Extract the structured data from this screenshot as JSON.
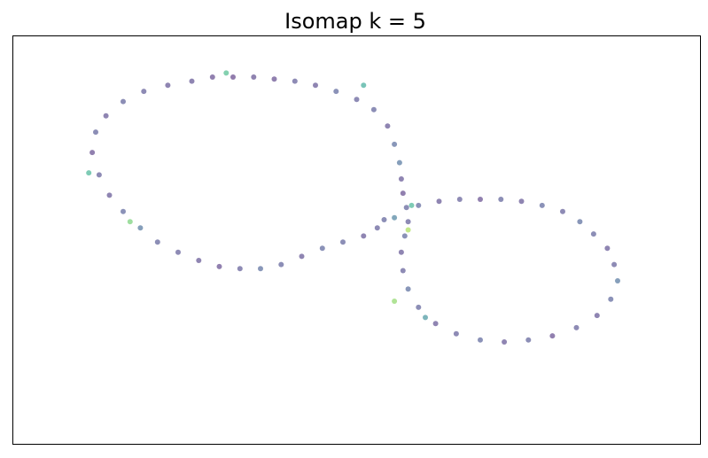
{
  "chart_data": {
    "type": "scatter",
    "title": "Isomap k = 5",
    "xlabel": "",
    "ylabel": "",
    "xlim": [
      -1.0,
      1.0
    ],
    "ylim": [
      -1.0,
      1.0
    ],
    "grid": false,
    "axis_ticks": false,
    "legend": "none",
    "colormap": "viridis",
    "marker_alpha": 0.6,
    "series": [
      {
        "shape": "figure-eight loop of points with density-based coloring",
        "points": [
          [
            -0.48,
            0.78,
            0.15
          ],
          [
            -0.42,
            0.8,
            0.12
          ],
          [
            -0.36,
            0.8,
            0.1
          ],
          [
            -0.3,
            0.8,
            0.14
          ],
          [
            -0.24,
            0.79,
            0.12
          ],
          [
            -0.18,
            0.78,
            0.18
          ],
          [
            -0.12,
            0.76,
            0.15
          ],
          [
            -0.06,
            0.73,
            0.22
          ],
          [
            0.0,
            0.69,
            0.18
          ],
          [
            0.05,
            0.64,
            0.2
          ],
          [
            0.09,
            0.56,
            0.15
          ],
          [
            0.11,
            0.47,
            0.25
          ],
          [
            0.125,
            0.38,
            0.3
          ],
          [
            0.13,
            0.3,
            0.15
          ],
          [
            0.135,
            0.23,
            0.12
          ],
          [
            0.145,
            0.16,
            0.2
          ],
          [
            0.11,
            0.11,
            0.35
          ],
          [
            0.08,
            0.1,
            0.2
          ],
          [
            0.06,
            0.06,
            0.18
          ],
          [
            0.02,
            0.02,
            0.15
          ],
          [
            -0.04,
            -0.01,
            0.2
          ],
          [
            -0.1,
            -0.04,
            0.22
          ],
          [
            -0.16,
            -0.08,
            0.15
          ],
          [
            -0.22,
            -0.12,
            0.2
          ],
          [
            -0.28,
            -0.14,
            0.25
          ],
          [
            -0.34,
            -0.14,
            0.18
          ],
          [
            -0.4,
            -0.13,
            0.12
          ],
          [
            -0.46,
            -0.1,
            0.15
          ],
          [
            -0.52,
            -0.06,
            0.18
          ],
          [
            -0.58,
            -0.01,
            0.2
          ],
          [
            -0.63,
            0.06,
            0.3
          ],
          [
            -0.68,
            0.14,
            0.22
          ],
          [
            -0.72,
            0.22,
            0.15
          ],
          [
            -0.75,
            0.32,
            0.18
          ],
          [
            -0.77,
            0.43,
            0.12
          ],
          [
            -0.76,
            0.53,
            0.2
          ],
          [
            -0.73,
            0.61,
            0.15
          ],
          [
            -0.68,
            0.68,
            0.2
          ],
          [
            -0.62,
            0.73,
            0.18
          ],
          [
            -0.55,
            0.76,
            0.15
          ],
          [
            0.18,
            0.17,
            0.22
          ],
          [
            0.24,
            0.19,
            0.15
          ],
          [
            0.3,
            0.2,
            0.18
          ],
          [
            0.36,
            0.2,
            0.12
          ],
          [
            0.42,
            0.2,
            0.2
          ],
          [
            0.48,
            0.19,
            0.15
          ],
          [
            0.54,
            0.17,
            0.22
          ],
          [
            0.6,
            0.14,
            0.18
          ],
          [
            0.65,
            0.09,
            0.25
          ],
          [
            0.69,
            0.03,
            0.2
          ],
          [
            0.73,
            -0.04,
            0.15
          ],
          [
            0.75,
            -0.12,
            0.18
          ],
          [
            0.76,
            -0.2,
            0.3
          ],
          [
            0.74,
            -0.29,
            0.22
          ],
          [
            0.7,
            -0.37,
            0.15
          ],
          [
            0.64,
            -0.43,
            0.18
          ],
          [
            0.57,
            -0.47,
            0.12
          ],
          [
            0.5,
            -0.49,
            0.2
          ],
          [
            0.43,
            -0.5,
            0.15
          ],
          [
            0.36,
            -0.49,
            0.22
          ],
          [
            0.29,
            -0.46,
            0.18
          ],
          [
            0.23,
            -0.41,
            0.15
          ],
          [
            0.18,
            -0.33,
            0.2
          ],
          [
            0.15,
            -0.24,
            0.25
          ],
          [
            0.135,
            -0.15,
            0.18
          ],
          [
            0.13,
            -0.06,
            0.15
          ],
          [
            0.14,
            0.02,
            0.22
          ],
          [
            0.15,
            0.09,
            0.18
          ],
          [
            0.15,
            0.05,
            0.85
          ],
          [
            0.11,
            -0.3,
            0.8
          ],
          [
            -0.66,
            0.09,
            0.75
          ],
          [
            -0.78,
            0.33,
            0.6
          ],
          [
            -0.38,
            0.82,
            0.65
          ],
          [
            0.02,
            0.76,
            0.55
          ],
          [
            0.16,
            0.17,
            0.6
          ],
          [
            0.2,
            -0.38,
            0.45
          ]
        ]
      }
    ]
  }
}
